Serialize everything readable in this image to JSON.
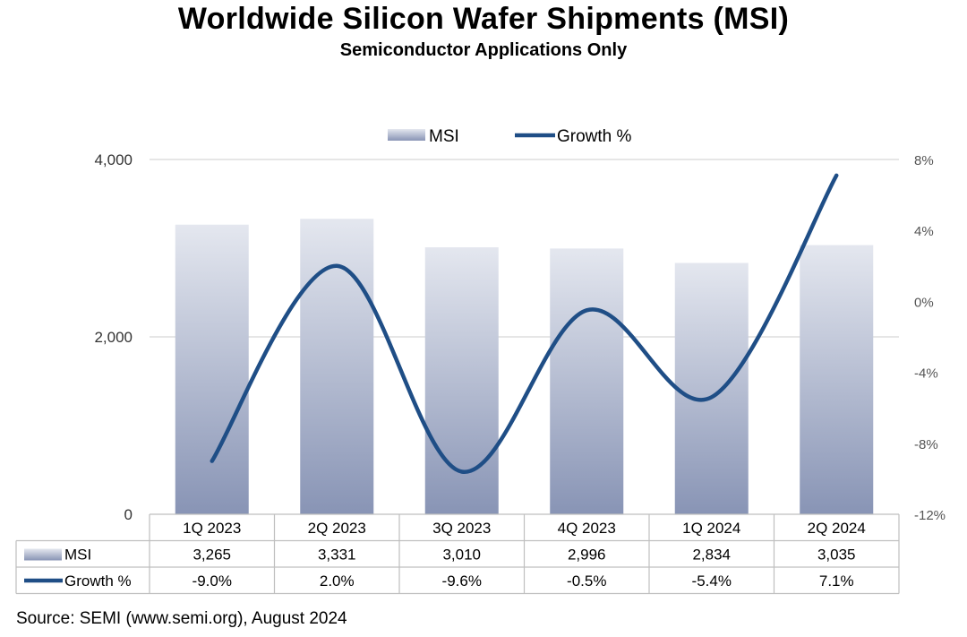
{
  "title": "Worldwide Silicon Wafer Shipments (MSI)",
  "subtitle": "Semiconductor Applications Only",
  "source": "Source: SEMI (www.semi.org), August 2024",
  "colors": {
    "bar_top": "#e4e7ef",
    "bar_bottom": "#8894b5",
    "line": "#1f4e86",
    "grid": "#d6d6d6",
    "border": "#bfbfbf"
  },
  "chart_data": {
    "type": "bar+line",
    "title": "Worldwide Silicon Wafer Shipments (MSI)",
    "subtitle": "Semiconductor Applications Only",
    "categories": [
      "1Q 2023",
      "2Q 2023",
      "3Q 2023",
      "4Q 2023",
      "1Q 2024",
      "2Q 2024"
    ],
    "series": [
      {
        "name": "MSI",
        "type": "bar",
        "axis": "left",
        "values": [
          3265,
          3331,
          3010,
          2996,
          2834,
          3035
        ],
        "labels": [
          "3,265",
          "3,331",
          "3,010",
          "2,996",
          "2,834",
          "3,035"
        ]
      },
      {
        "name": "Growth %",
        "type": "line",
        "axis": "right",
        "values": [
          -9.0,
          2.0,
          -9.6,
          -0.5,
          -5.4,
          7.1
        ],
        "labels": [
          "-9.0%",
          "2.0%",
          "-9.6%",
          "-0.5%",
          "-5.4%",
          "7.1%"
        ]
      }
    ],
    "left_axis": {
      "range": [
        0,
        4000
      ],
      "ticks": [
        0,
        2000,
        4000
      ],
      "tick_labels": [
        "0",
        "2,000",
        "4,000"
      ]
    },
    "right_axis": {
      "range": [
        -12,
        8
      ],
      "ticks": [
        -12,
        -8,
        -4,
        0,
        4,
        8
      ],
      "tick_labels": [
        "-12%",
        "-8%",
        "-4%",
        "0%",
        "4%",
        "8%"
      ]
    },
    "legend": [
      "MSI",
      "Growth %"
    ],
    "legend_position": "top-center",
    "data_table": true
  }
}
